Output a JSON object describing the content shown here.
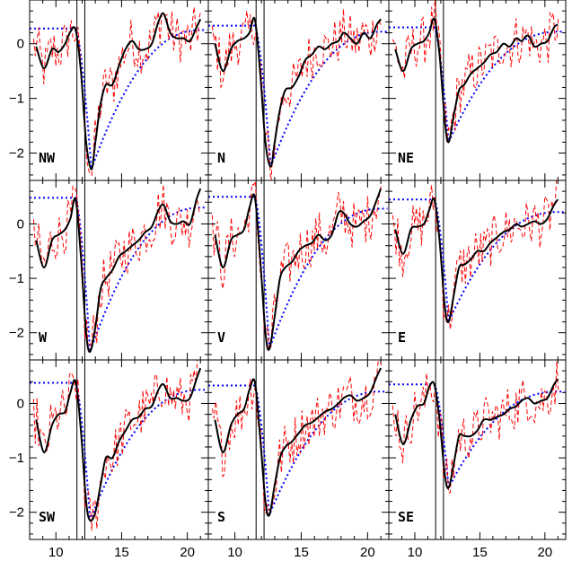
{
  "chart_data": {
    "type": "line",
    "layout": "3x3 grid of panels sharing axes",
    "xlabel": "",
    "ylabel": "",
    "xlim": [
      8,
      21.6
    ],
    "ylim": [
      -2.5,
      0.8
    ],
    "x_ticks": [
      10,
      15,
      20
    ],
    "y_ticks": [
      0,
      -1,
      -2
    ],
    "vertical_lines_x": [
      11.6,
      12.2
    ],
    "series_styles": {
      "smooth": {
        "color": "#000000",
        "style": "solid",
        "width": 2
      },
      "noisy": {
        "color": "#ff0000",
        "style": "dashed",
        "width": 1
      },
      "model": {
        "color": "#0000ff",
        "style": "dotted",
        "width": 2
      }
    },
    "panels": [
      {
        "label": "NW",
        "plateau": 0.28,
        "min_y": -2.3,
        "min_x": 12.7,
        "end_model": 0.25,
        "end_smooth": 0.45,
        "smooth_pts": [
          [
            8.5,
            -0.05
          ],
          [
            9.1,
            -0.45
          ],
          [
            9.7,
            -0.1
          ],
          [
            10.2,
            -0.15
          ],
          [
            10.7,
            0.0
          ],
          [
            11.1,
            0.22
          ],
          [
            11.5,
            0.25
          ],
          [
            11.9,
            -0.5
          ],
          [
            12.3,
            -1.8
          ],
          [
            12.7,
            -2.3
          ],
          [
            13.0,
            -1.8
          ],
          [
            13.4,
            -1.1
          ],
          [
            13.8,
            -0.75
          ],
          [
            14.3,
            -0.75
          ],
          [
            14.8,
            -0.4
          ],
          [
            15.3,
            -0.1
          ],
          [
            15.8,
            0.05
          ],
          [
            16.3,
            -0.1
          ],
          [
            16.8,
            -0.1
          ],
          [
            17.3,
            0.0
          ],
          [
            17.8,
            0.4
          ],
          [
            18.2,
            0.55
          ],
          [
            18.7,
            0.2
          ],
          [
            19.2,
            0.1
          ],
          [
            19.7,
            0.1
          ],
          [
            20.2,
            0.05
          ],
          [
            20.7,
            0.3
          ],
          [
            21.0,
            0.45
          ]
        ]
      },
      {
        "label": "N",
        "plateau": 0.33,
        "min_y": -2.25,
        "min_x": 12.7,
        "end_model": 0.22,
        "end_smooth": 0.45,
        "smooth_pts": [
          [
            8.5,
            0.0
          ],
          [
            9.1,
            -0.5
          ],
          [
            9.7,
            -0.1
          ],
          [
            10.2,
            0.05
          ],
          [
            10.7,
            0.1
          ],
          [
            11.1,
            0.2
          ],
          [
            11.5,
            0.45
          ],
          [
            11.9,
            -0.5
          ],
          [
            12.3,
            -1.8
          ],
          [
            12.7,
            -2.25
          ],
          [
            13.0,
            -1.8
          ],
          [
            13.4,
            -1.2
          ],
          [
            13.8,
            -0.85
          ],
          [
            14.3,
            -0.8
          ],
          [
            14.8,
            -0.6
          ],
          [
            15.3,
            -0.3
          ],
          [
            15.8,
            -0.2
          ],
          [
            16.3,
            -0.05
          ],
          [
            16.8,
            -0.1
          ],
          [
            17.3,
            0.0
          ],
          [
            17.8,
            0.05
          ],
          [
            18.2,
            0.2
          ],
          [
            18.7,
            0.1
          ],
          [
            19.2,
            0.0
          ],
          [
            19.7,
            0.2
          ],
          [
            20.2,
            0.1
          ],
          [
            20.7,
            0.35
          ],
          [
            21.0,
            0.45
          ]
        ]
      },
      {
        "label": "NE",
        "plateau": 0.3,
        "min_y": -1.8,
        "min_x": 12.6,
        "end_model": 0.22,
        "end_smooth": 0.35,
        "smooth_pts": [
          [
            8.5,
            -0.1
          ],
          [
            9.1,
            -0.5
          ],
          [
            9.7,
            -0.1
          ],
          [
            10.2,
            0.0
          ],
          [
            10.7,
            0.05
          ],
          [
            11.1,
            0.2
          ],
          [
            11.5,
            0.45
          ],
          [
            11.9,
            -0.2
          ],
          [
            12.3,
            -1.4
          ],
          [
            12.6,
            -1.8
          ],
          [
            13.0,
            -1.3
          ],
          [
            13.4,
            -0.85
          ],
          [
            13.8,
            -0.75
          ],
          [
            14.3,
            -0.55
          ],
          [
            14.8,
            -0.45
          ],
          [
            15.3,
            -0.35
          ],
          [
            15.8,
            -0.2
          ],
          [
            16.3,
            -0.15
          ],
          [
            16.8,
            0.0
          ],
          [
            17.3,
            -0.05
          ],
          [
            17.8,
            0.1
          ],
          [
            18.2,
            0.05
          ],
          [
            18.7,
            0.15
          ],
          [
            19.2,
            -0.05
          ],
          [
            19.7,
            0.0
          ],
          [
            20.2,
            0.05
          ],
          [
            20.7,
            0.3
          ],
          [
            21.0,
            0.35
          ]
        ]
      },
      {
        "label": "W",
        "plateau": 0.48,
        "min_y": -2.35,
        "min_x": 12.6,
        "end_model": 0.3,
        "end_smooth": 0.65,
        "smooth_pts": [
          [
            8.5,
            -0.3
          ],
          [
            9.1,
            -0.8
          ],
          [
            9.7,
            -0.3
          ],
          [
            10.2,
            -0.2
          ],
          [
            10.7,
            -0.1
          ],
          [
            11.1,
            0.1
          ],
          [
            11.5,
            0.45
          ],
          [
            11.9,
            -0.6
          ],
          [
            12.3,
            -2.0
          ],
          [
            12.6,
            -2.35
          ],
          [
            13.0,
            -1.9
          ],
          [
            13.4,
            -1.2
          ],
          [
            13.8,
            -1.0
          ],
          [
            14.3,
            -0.85
          ],
          [
            14.8,
            -0.6
          ],
          [
            15.3,
            -0.5
          ],
          [
            15.8,
            -0.4
          ],
          [
            16.3,
            -0.3
          ],
          [
            16.8,
            -0.15
          ],
          [
            17.3,
            -0.05
          ],
          [
            17.8,
            0.25
          ],
          [
            18.2,
            0.35
          ],
          [
            18.7,
            0.05
          ],
          [
            19.2,
            0.0
          ],
          [
            19.7,
            0.05
          ],
          [
            20.2,
            0.0
          ],
          [
            20.7,
            0.45
          ],
          [
            21.0,
            0.65
          ]
        ]
      },
      {
        "label": "V",
        "plateau": 0.5,
        "min_y": -2.3,
        "min_x": 12.6,
        "end_model": 0.28,
        "end_smooth": 0.65,
        "smooth_pts": [
          [
            8.5,
            -0.2
          ],
          [
            9.1,
            -0.8
          ],
          [
            9.7,
            -0.3
          ],
          [
            10.2,
            -0.2
          ],
          [
            10.7,
            -0.1
          ],
          [
            11.1,
            0.3
          ],
          [
            11.5,
            0.5
          ],
          [
            11.9,
            -0.6
          ],
          [
            12.3,
            -2.0
          ],
          [
            12.6,
            -2.3
          ],
          [
            13.0,
            -1.7
          ],
          [
            13.4,
            -1.0
          ],
          [
            13.8,
            -0.8
          ],
          [
            14.3,
            -0.7
          ],
          [
            14.8,
            -0.5
          ],
          [
            15.3,
            -0.4
          ],
          [
            15.8,
            -0.35
          ],
          [
            16.3,
            -0.2
          ],
          [
            16.8,
            -0.3
          ],
          [
            17.3,
            -0.2
          ],
          [
            17.8,
            0.2
          ],
          [
            18.2,
            0.2
          ],
          [
            18.7,
            0.0
          ],
          [
            19.2,
            -0.05
          ],
          [
            19.7,
            0.05
          ],
          [
            20.2,
            0.15
          ],
          [
            20.7,
            0.45
          ],
          [
            21.0,
            0.65
          ]
        ]
      },
      {
        "label": "E",
        "plateau": 0.45,
        "min_y": -1.8,
        "min_x": 12.6,
        "end_model": 0.22,
        "end_smooth": 0.45,
        "smooth_pts": [
          [
            8.5,
            -0.1
          ],
          [
            9.1,
            -0.55
          ],
          [
            9.7,
            -0.1
          ],
          [
            10.2,
            -0.05
          ],
          [
            10.7,
            0.0
          ],
          [
            11.1,
            0.25
          ],
          [
            11.5,
            0.45
          ],
          [
            11.9,
            -0.3
          ],
          [
            12.3,
            -1.5
          ],
          [
            12.6,
            -1.8
          ],
          [
            13.0,
            -1.3
          ],
          [
            13.4,
            -0.8
          ],
          [
            13.8,
            -0.75
          ],
          [
            14.3,
            -0.65
          ],
          [
            14.8,
            -0.5
          ],
          [
            15.3,
            -0.5
          ],
          [
            15.8,
            -0.35
          ],
          [
            16.3,
            -0.25
          ],
          [
            16.8,
            -0.15
          ],
          [
            17.3,
            -0.1
          ],
          [
            17.8,
            0.0
          ],
          [
            18.2,
            -0.05
          ],
          [
            18.7,
            0.0
          ],
          [
            19.2,
            0.05
          ],
          [
            19.7,
            0.0
          ],
          [
            20.2,
            0.1
          ],
          [
            20.7,
            0.35
          ],
          [
            21.0,
            0.45
          ]
        ]
      },
      {
        "label": "SW",
        "plateau": 0.38,
        "min_y": -2.15,
        "min_x": 12.6,
        "end_model": 0.25,
        "end_smooth": 0.65,
        "smooth_pts": [
          [
            8.5,
            -0.3
          ],
          [
            9.1,
            -0.9
          ],
          [
            9.7,
            -0.4
          ],
          [
            10.2,
            -0.2
          ],
          [
            10.7,
            -0.15
          ],
          [
            11.1,
            0.2
          ],
          [
            11.5,
            0.4
          ],
          [
            11.9,
            -0.5
          ],
          [
            12.3,
            -1.8
          ],
          [
            12.6,
            -2.15
          ],
          [
            13.0,
            -2.0
          ],
          [
            13.4,
            -1.5
          ],
          [
            13.8,
            -1.0
          ],
          [
            14.3,
            -1.0
          ],
          [
            14.8,
            -0.7
          ],
          [
            15.3,
            -0.5
          ],
          [
            15.8,
            -0.3
          ],
          [
            16.3,
            -0.25
          ],
          [
            16.8,
            -0.1
          ],
          [
            17.3,
            -0.05
          ],
          [
            17.8,
            0.25
          ],
          [
            18.2,
            0.35
          ],
          [
            18.7,
            0.1
          ],
          [
            19.2,
            0.1
          ],
          [
            19.7,
            0.05
          ],
          [
            20.2,
            0.1
          ],
          [
            20.7,
            0.45
          ],
          [
            21.0,
            0.65
          ]
        ]
      },
      {
        "label": "S",
        "plateau": 0.33,
        "min_y": -2.05,
        "min_x": 12.6,
        "end_model": 0.22,
        "end_smooth": 0.65,
        "smooth_pts": [
          [
            8.5,
            -0.3
          ],
          [
            9.1,
            -0.9
          ],
          [
            9.7,
            -0.4
          ],
          [
            10.2,
            -0.2
          ],
          [
            10.7,
            -0.1
          ],
          [
            11.1,
            0.25
          ],
          [
            11.5,
            0.4
          ],
          [
            11.9,
            -0.6
          ],
          [
            12.3,
            -1.8
          ],
          [
            12.6,
            -2.05
          ],
          [
            13.0,
            -1.5
          ],
          [
            13.4,
            -1.0
          ],
          [
            13.8,
            -0.8
          ],
          [
            14.3,
            -0.7
          ],
          [
            14.8,
            -0.55
          ],
          [
            15.3,
            -0.4
          ],
          [
            15.8,
            -0.35
          ],
          [
            16.3,
            -0.25
          ],
          [
            16.8,
            -0.15
          ],
          [
            17.3,
            -0.1
          ],
          [
            17.8,
            0.0
          ],
          [
            18.2,
            0.1
          ],
          [
            18.7,
            0.15
          ],
          [
            19.2,
            0.05
          ],
          [
            19.7,
            0.1
          ],
          [
            20.2,
            0.2
          ],
          [
            20.7,
            0.5
          ],
          [
            21.0,
            0.65
          ]
        ]
      },
      {
        "label": "SE",
        "plateau": 0.35,
        "min_y": -1.55,
        "min_x": 12.6,
        "end_model": 0.22,
        "end_smooth": 0.45,
        "smooth_pts": [
          [
            8.5,
            -0.2
          ],
          [
            9.1,
            -0.75
          ],
          [
            9.7,
            -0.3
          ],
          [
            10.2,
            -0.05
          ],
          [
            10.7,
            0.0
          ],
          [
            11.1,
            0.3
          ],
          [
            11.5,
            0.35
          ],
          [
            11.9,
            -0.3
          ],
          [
            12.3,
            -1.3
          ],
          [
            12.6,
            -1.55
          ],
          [
            13.0,
            -1.1
          ],
          [
            13.4,
            -0.6
          ],
          [
            13.8,
            -0.6
          ],
          [
            14.3,
            -0.6
          ],
          [
            14.8,
            -0.5
          ],
          [
            15.3,
            -0.3
          ],
          [
            15.8,
            -0.3
          ],
          [
            16.3,
            -0.25
          ],
          [
            16.8,
            -0.2
          ],
          [
            17.3,
            -0.1
          ],
          [
            17.8,
            -0.05
          ],
          [
            18.2,
            0.05
          ],
          [
            18.7,
            0.1
          ],
          [
            19.2,
            0.0
          ],
          [
            19.7,
            0.05
          ],
          [
            20.2,
            0.1
          ],
          [
            20.7,
            0.35
          ],
          [
            21.0,
            0.45
          ]
        ]
      }
    ]
  }
}
